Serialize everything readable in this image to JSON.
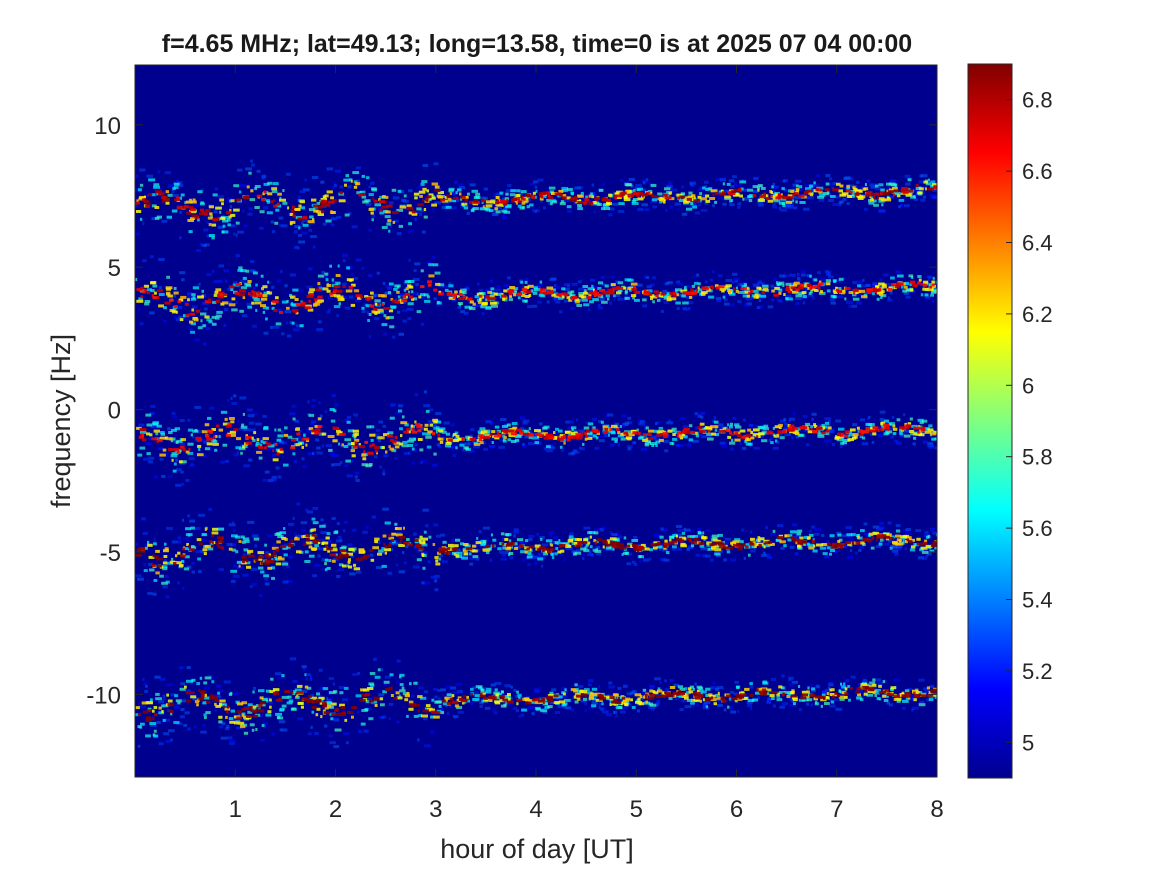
{
  "chart_data": {
    "type": "heatmap",
    "title": "f=4.65 MHz;  lat=49.13; long=13.58, time=0 is at 2025 07 04 00:00",
    "xlabel": "hour of day [UT]",
    "ylabel": "frequency [Hz]",
    "xlim": [
      0,
      8
    ],
    "ylim": [
      -12.9,
      12.1
    ],
    "x_ticks": [
      1,
      2,
      3,
      4,
      5,
      6,
      7,
      8
    ],
    "x_tick_labels": [
      "1",
      "2",
      "3",
      "4",
      "5",
      "6",
      "7",
      "8"
    ],
    "y_ticks": [
      10,
      5,
      0,
      -5,
      -10
    ],
    "y_tick_labels": [
      "10",
      "5",
      "0",
      "-5",
      "-10"
    ],
    "colorbar": {
      "range": [
        4.9,
        6.9
      ],
      "ticks": [
        6.8,
        6.6,
        6.4,
        6.2,
        6,
        5.8,
        5.6,
        5.4,
        5.2,
        5
      ],
      "tick_labels": [
        "6.8",
        "6.6",
        "6.4",
        "6.2",
        "6",
        "5.8",
        "5.6",
        "5.4",
        "5.2",
        "5"
      ],
      "colormap": "jet"
    },
    "background_color": "#00008f",
    "grid": false,
    "traces": [
      {
        "center_hz_start": 7.1,
        "center_hz_end": 7.7,
        "peak_value": 6.8
      },
      {
        "center_hz_start": 3.8,
        "center_hz_end": 4.3,
        "peak_value": 6.7
      },
      {
        "center_hz_start": -1.1,
        "center_hz_end": -0.7,
        "peak_value": 6.7
      },
      {
        "center_hz_start": -5.0,
        "center_hz_end": -4.6,
        "peak_value": 6.9
      },
      {
        "center_hz_start": -10.4,
        "center_hz_end": -9.9,
        "peak_value": 6.9
      }
    ]
  }
}
